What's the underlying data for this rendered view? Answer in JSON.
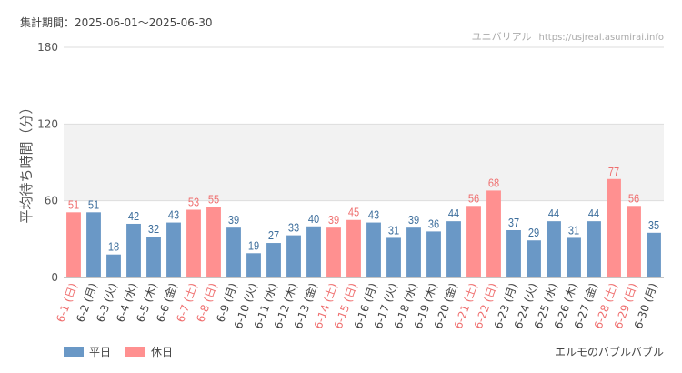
{
  "header": {
    "period": "集計期間：2025-06-01～2025-06-30",
    "source_name": "ユニバリアル",
    "source_url": "https://usjreal.asumirai.info"
  },
  "footer": {
    "attraction": "エルモのバブルバブル"
  },
  "colors": {
    "weekday": "#6a98c6",
    "holiday": "#ff9090",
    "weekday_label": "#3d6e9c",
    "holiday_label": "#ef6f6f",
    "band": "#f2f2f2"
  },
  "chart_data": {
    "type": "bar",
    "title": "",
    "ylabel": "平均待ち時間（分）",
    "xlabel": "",
    "ylim": [
      0,
      180
    ],
    "yticks": [
      0,
      60,
      120,
      180
    ],
    "grid": true,
    "legend": {
      "position": "bottom-left",
      "entries": [
        "平日",
        "休日"
      ]
    },
    "categories": [
      "6-1 (日)",
      "6-2 (月)",
      "6-3 (火)",
      "6-4 (水)",
      "6-5 (木)",
      "6-6 (金)",
      "6-7 (土)",
      "6-8 (日)",
      "6-9 (月)",
      "6-10 (火)",
      "6-11 (水)",
      "6-12 (木)",
      "6-13 (金)",
      "6-14 (土)",
      "6-15 (日)",
      "6-16 (月)",
      "6-17 (火)",
      "6-18 (水)",
      "6-19 (木)",
      "6-20 (金)",
      "6-21 (土)",
      "6-22 (日)",
      "6-23 (月)",
      "6-24 (火)",
      "6-25 (水)",
      "6-26 (木)",
      "6-27 (金)",
      "6-28 (土)",
      "6-29 (日)",
      "6-30 (月)"
    ],
    "values": [
      51,
      51,
      18,
      42,
      32,
      43,
      53,
      55,
      39,
      19,
      27,
      33,
      40,
      39,
      45,
      43,
      31,
      39,
      36,
      44,
      56,
      68,
      37,
      29,
      44,
      31,
      44,
      77,
      56,
      35
    ],
    "holiday": [
      true,
      false,
      false,
      false,
      false,
      false,
      true,
      true,
      false,
      false,
      false,
      false,
      false,
      true,
      true,
      false,
      false,
      false,
      false,
      false,
      true,
      true,
      false,
      false,
      false,
      false,
      false,
      true,
      true,
      false
    ]
  }
}
